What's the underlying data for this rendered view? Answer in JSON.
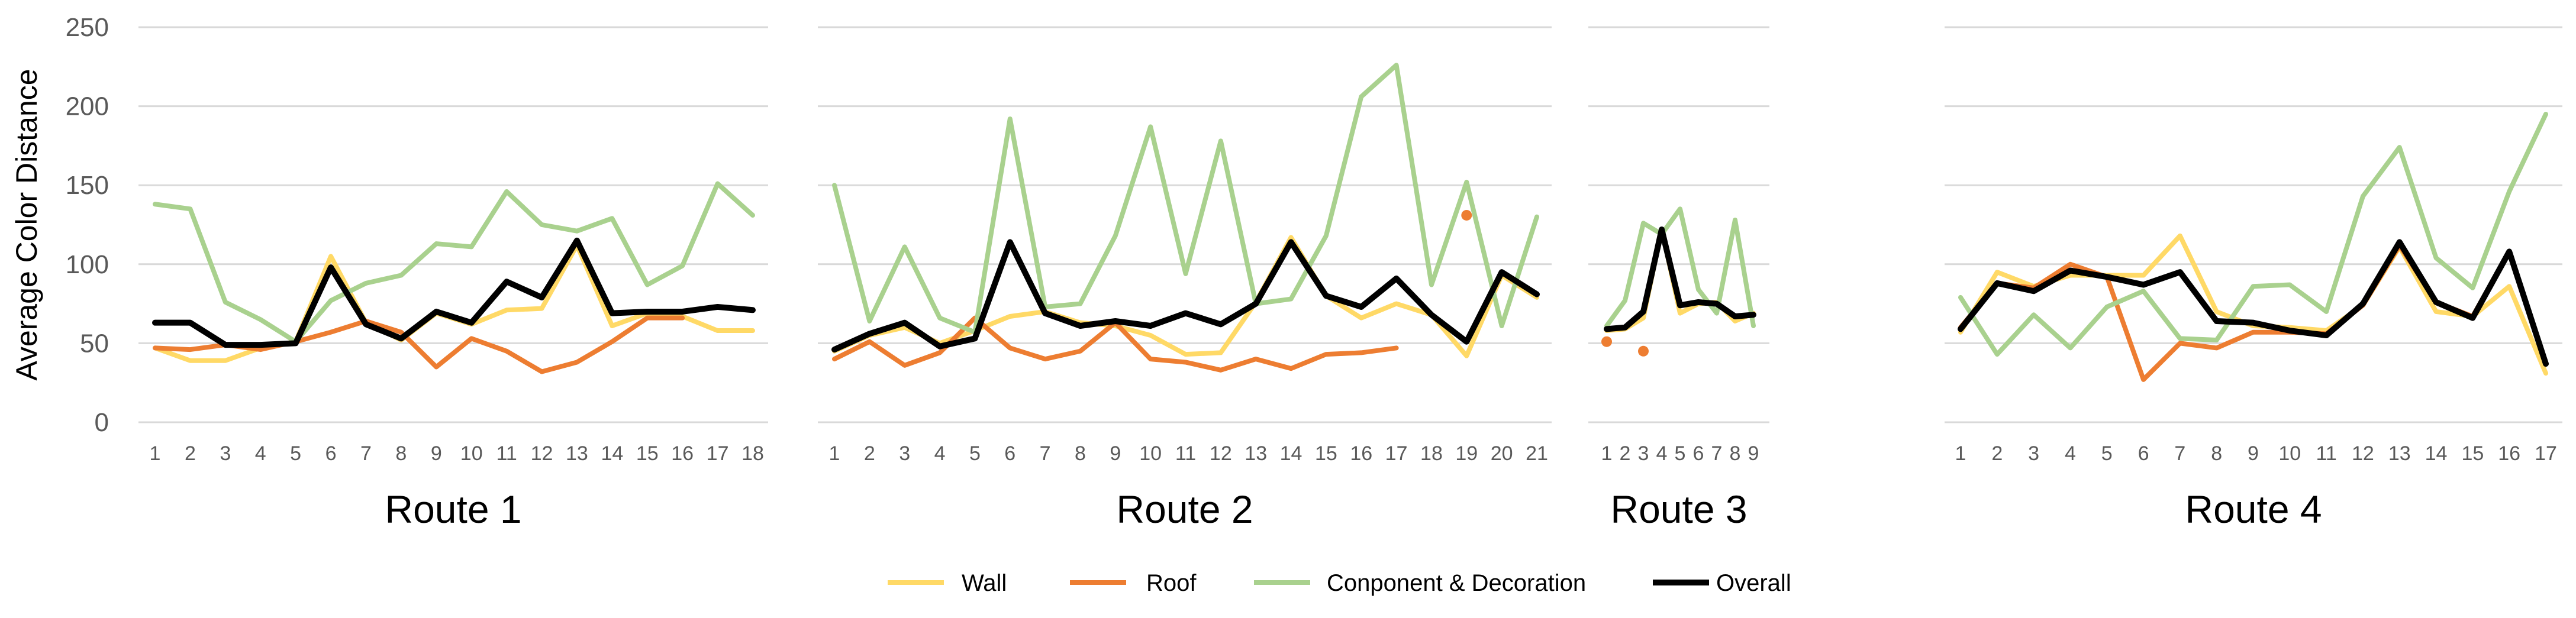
{
  "chart_data": {
    "type": "line",
    "ylabel": "Average Color Distance",
    "ylim": [
      0,
      250
    ],
    "yticks": [
      0,
      50,
      100,
      150,
      200,
      250
    ],
    "grid": true,
    "legend_position": "bottom",
    "series_styles": [
      {
        "name": "Wall",
        "color": "#FFD966"
      },
      {
        "name": "Roof",
        "color": "#ED7D31"
      },
      {
        "name": "Conponent & Decoration",
        "color": "#A9D18E"
      },
      {
        "name": "Overall",
        "color": "#000000"
      }
    ],
    "panels": [
      {
        "title": "Route 1",
        "x": [
          1,
          2,
          3,
          4,
          5,
          6,
          7,
          8,
          9,
          10,
          11,
          12,
          13,
          14,
          15,
          16,
          17,
          18
        ],
        "series": [
          {
            "name": "Wall",
            "values": [
              47,
              39,
              39,
              47,
              51,
              105,
              63,
              52,
              69,
              62,
              71,
              72,
              112,
              61,
              69,
              67,
              58,
              58
            ]
          },
          {
            "name": "Roof",
            "values": [
              47,
              46,
              49,
              46,
              51,
              57,
              64,
              57,
              35,
              53,
              45,
              32,
              38,
              51,
              66,
              66,
              null,
              null
            ]
          },
          {
            "name": "Conponent & Decoration",
            "values": [
              138,
              135,
              76,
              65,
              51,
              77,
              88,
              93,
              113,
              111,
              146,
              125,
              121,
              129,
              87,
              99,
              151,
              131
            ]
          },
          {
            "name": "Overall",
            "values": [
              63,
              63,
              49,
              49,
              50,
              98,
              62,
              53,
              70,
              63,
              89,
              79,
              115,
              69,
              70,
              70,
              73,
              71
            ]
          }
        ]
      },
      {
        "title": "Route 2",
        "x": [
          1,
          2,
          3,
          4,
          5,
          6,
          7,
          8,
          9,
          10,
          11,
          12,
          13,
          14,
          15,
          16,
          17,
          18,
          19,
          20,
          21
        ],
        "series": [
          {
            "name": "Wall",
            "values": [
              45,
              55,
              60,
              50,
              58,
              67,
              70,
              63,
              61,
              55,
              43,
              44,
              76,
              117,
              80,
              66,
              75,
              68,
              42,
              93,
              79
            ]
          },
          {
            "name": "Roof",
            "values": [
              40,
              51,
              36,
              44,
              66,
              47,
              40,
              45,
              63,
              40,
              38,
              33,
              40,
              34,
              43,
              44,
              47,
              null,
              131,
              null,
              null
            ]
          },
          {
            "name": "Conponent & Decoration",
            "values": [
              150,
              64,
              111,
              66,
              57,
              192,
              73,
              75,
              118,
              187,
              94,
              178,
              75,
              78,
              118,
              206,
              226,
              87,
              152,
              61,
              130
            ]
          },
          {
            "name": "Overall",
            "values": [
              46,
              56,
              63,
              48,
              53,
              114,
              69,
              61,
              64,
              61,
              69,
              62,
              75,
              114,
              80,
              73,
              91,
              68,
              51,
              95,
              81
            ]
          }
        ]
      },
      {
        "title": "Route 3",
        "x": [
          1,
          2,
          3,
          4,
          5,
          6,
          7,
          8,
          9
        ],
        "series": [
          {
            "name": "Wall",
            "values": [
              58,
              59,
              66,
              122,
              69,
              75,
              76,
              64,
              69
            ]
          },
          {
            "name": "Roof",
            "values": [
              51,
              null,
              45,
              null,
              null,
              null,
              null,
              null,
              null
            ]
          },
          {
            "name": "Conponent & Decoration",
            "values": [
              61,
              77,
              126,
              119,
              135,
              84,
              69,
              128,
              61
            ]
          },
          {
            "name": "Overall",
            "values": [
              59,
              60,
              70,
              122,
              74,
              76,
              75,
              67,
              68
            ]
          }
        ]
      },
      {
        "title": "Route 4",
        "x": [
          1,
          2,
          3,
          4,
          5,
          6,
          7,
          8,
          9,
          10,
          11,
          12,
          13,
          14,
          15,
          16,
          17
        ],
        "series": [
          {
            "name": "Wall",
            "values": [
              57,
              95,
              86,
              93,
              93,
              93,
              118,
              70,
              61,
              60,
              58,
              74,
              111,
              70,
              67,
              86,
              31
            ]
          },
          {
            "name": "Roof",
            "values": [
              60,
              88,
              85,
              100,
              92,
              27,
              50,
              47,
              57,
              57,
              56,
              74,
              112,
              76,
              67,
              108,
              38
            ]
          },
          {
            "name": "Conponent & Decoration",
            "values": [
              79,
              43,
              68,
              47,
              73,
              83,
              53,
              52,
              86,
              87,
              70,
              143,
              174,
              104,
              85,
              146,
              195
            ]
          },
          {
            "name": "Overall",
            "values": [
              59,
              88,
              83,
              96,
              92,
              87,
              95,
              64,
              63,
              58,
              55,
              75,
              114,
              76,
              66,
              108,
              37
            ]
          }
        ]
      }
    ]
  }
}
